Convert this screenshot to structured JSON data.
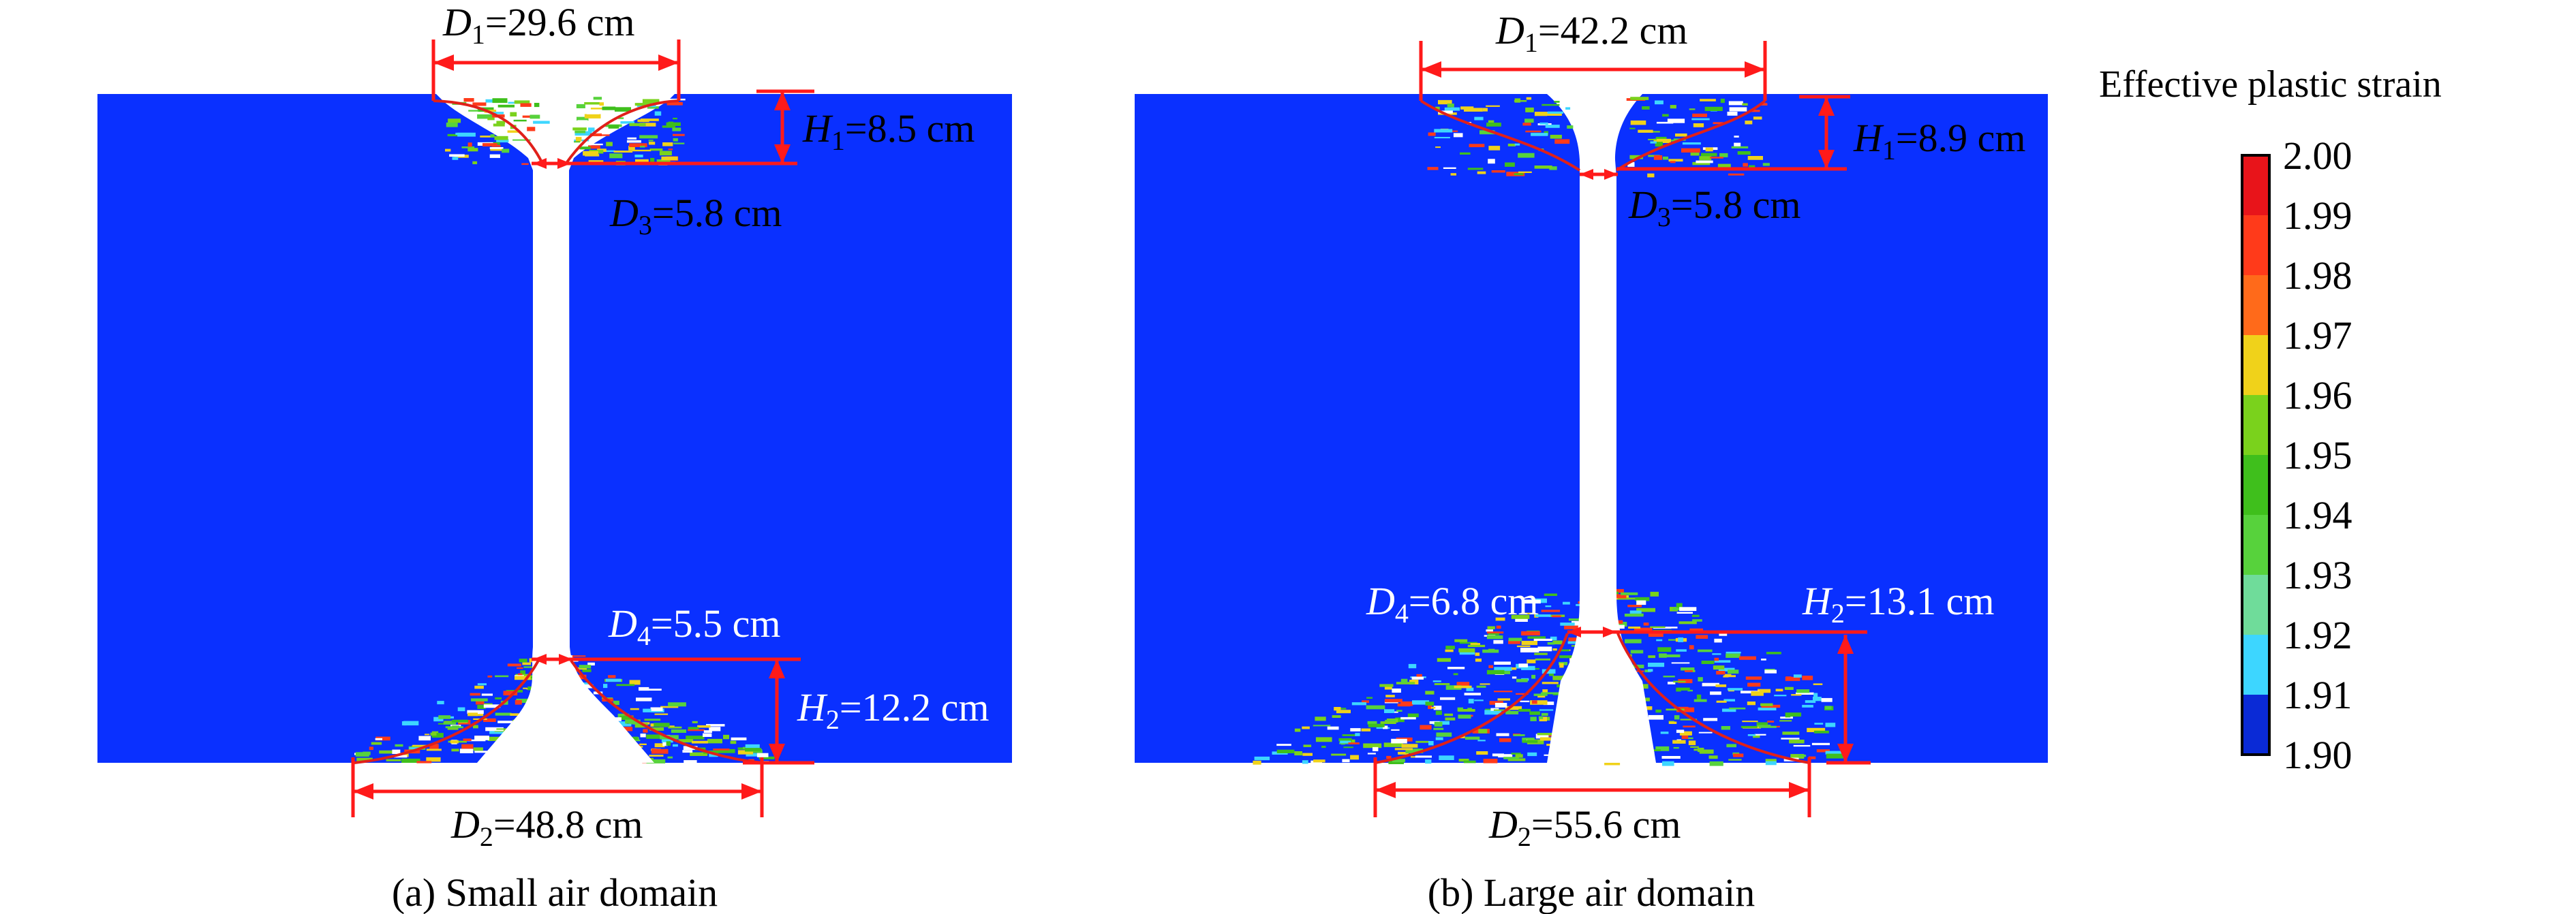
{
  "colors": {
    "domain": "#0a30ff",
    "hole": "#ffffff",
    "dimension": "#ff1a1a",
    "legend_steps": [
      "#0a2ad6",
      "#2b6cff",
      "#3dd6ff",
      "#6fdc9a",
      "#57d23c",
      "#3fbf1c",
      "#7ad21c",
      "#f0d21a",
      "#ff6a1a",
      "#ff3a1a",
      "#e8141a"
    ]
  },
  "panel_a": {
    "caption": "(a) Small air domain",
    "d1": {
      "sym": "D",
      "sub": "1",
      "val": "=29.6 cm"
    },
    "d2": {
      "sym": "D",
      "sub": "2",
      "val": "=48.8 cm"
    },
    "d3": {
      "sym": "D",
      "sub": "3",
      "val": "=5.8 cm"
    },
    "d4": {
      "sym": "D",
      "sub": "4",
      "val": "=5.5 cm"
    },
    "h1": {
      "sym": "H",
      "sub": "1",
      "val": "=8.5 cm"
    },
    "h2": {
      "sym": "H",
      "sub": "2",
      "val": "=12.2 cm"
    }
  },
  "panel_b": {
    "caption": "(b) Large air domain",
    "d1": {
      "sym": "D",
      "sub": "1",
      "val": "=42.2 cm"
    },
    "d2": {
      "sym": "D",
      "sub": "2",
      "val": "=55.6 cm"
    },
    "d3": {
      "sym": "D",
      "sub": "3",
      "val": "=5.8 cm"
    },
    "d4": {
      "sym": "D",
      "sub": "4",
      "val": "=6.8 cm"
    },
    "h1": {
      "sym": "H",
      "sub": "1",
      "val": "=8.9 cm"
    },
    "h2": {
      "sym": "H",
      "sub": "2",
      "val": "=13.1 cm"
    }
  },
  "legend": {
    "title": "Effective plastic strain",
    "ticks": [
      "2.00",
      "1.99",
      "1.98",
      "1.97",
      "1.96",
      "1.95",
      "1.94",
      "1.93",
      "1.92",
      "1.91",
      "1.90"
    ]
  }
}
